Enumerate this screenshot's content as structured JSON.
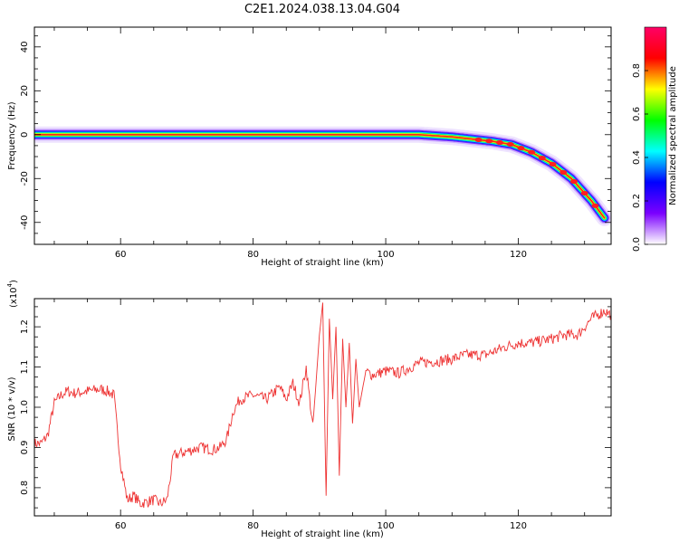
{
  "title": "C2E1.2024.038.13.04.G04",
  "chart_data": [
    {
      "type": "heatmap",
      "title": "C2E1.2024.038.13.04.G04",
      "xlabel": "Height of straight line (km)",
      "ylabel": "Frequency (Hz)",
      "xlim": [
        47,
        134
      ],
      "ylim": [
        -50,
        49
      ],
      "xticks": [
        60,
        80,
        100,
        120
      ],
      "yticks": [
        -40,
        -20,
        0,
        20,
        40
      ],
      "trace": {
        "x": [
          47,
          60,
          80,
          95,
          100,
          105,
          110,
          113,
          116,
          119,
          122,
          125,
          128,
          131,
          133
        ],
        "y": [
          0,
          0,
          0,
          0,
          0,
          0,
          -1,
          -2,
          -3,
          -4.5,
          -8,
          -13,
          -20,
          -30,
          -38
        ]
      },
      "colorbar": {
        "label": "Normalized spectral amplitude",
        "range": [
          0,
          1
        ],
        "ticks": [
          "0.0",
          "0.2",
          "0.4",
          "0.6",
          "0.8"
        ],
        "tick_values": [
          0.0,
          0.2,
          0.4,
          0.6,
          0.8
        ],
        "colors": [
          "#ffffff",
          "#7b00ff",
          "#0000ff",
          "#00ffff",
          "#00ff00",
          "#ffff00",
          "#ff0000",
          "#ff0066"
        ]
      }
    },
    {
      "type": "line",
      "xlabel": "Height of straight line (km)",
      "ylabel": "SNR (10 * v/v)",
      "multiplier_label": "(x10",
      "multiplier_exp": "4",
      "multiplier_close": ")",
      "xlim": [
        47,
        134
      ],
      "ylim": [
        0.73,
        1.27
      ],
      "xticks": [
        60,
        80,
        100,
        120
      ],
      "yticks": [
        0.8,
        0.9,
        1.0,
        1.1,
        1.2
      ],
      "ytick_labels": [
        "0.8",
        "0.9",
        "1.0",
        "1.1",
        "1.2"
      ],
      "color": "#ee3333",
      "series": [
        {
          "name": "SNR",
          "x": [
            47,
            48,
            49,
            50,
            51,
            52,
            53,
            55,
            57,
            58,
            59,
            60,
            61,
            62,
            63,
            65,
            66,
            67,
            68,
            70,
            72,
            74,
            75,
            76,
            77,
            78,
            80,
            82,
            84,
            85,
            86,
            87,
            88,
            89,
            90,
            90.5,
            91,
            91.5,
            92,
            92.5,
            93,
            93.5,
            94,
            94.5,
            95,
            95.5,
            96,
            97,
            98,
            100,
            102,
            105,
            108,
            110,
            112,
            115,
            118,
            120,
            122,
            125,
            127,
            129,
            131,
            133,
            134
          ],
          "y": [
            0.91,
            0.91,
            0.93,
            1.01,
            1.03,
            1.04,
            1.035,
            1.04,
            1.045,
            1.04,
            1.03,
            0.86,
            0.77,
            0.78,
            0.76,
            0.77,
            0.76,
            0.77,
            0.88,
            0.89,
            0.9,
            0.895,
            0.9,
            0.92,
            0.99,
            1.02,
            1.03,
            1.02,
            1.05,
            1.02,
            1.06,
            1.01,
            1.1,
            0.95,
            1.18,
            1.26,
            0.78,
            1.22,
            1.02,
            1.2,
            0.83,
            1.17,
            1.0,
            1.16,
            0.96,
            1.12,
            1.0,
            1.09,
            1.08,
            1.09,
            1.085,
            1.11,
            1.115,
            1.12,
            1.13,
            1.13,
            1.15,
            1.16,
            1.16,
            1.17,
            1.18,
            1.18,
            1.22,
            1.24,
            1.23
          ]
        }
      ]
    }
  ]
}
